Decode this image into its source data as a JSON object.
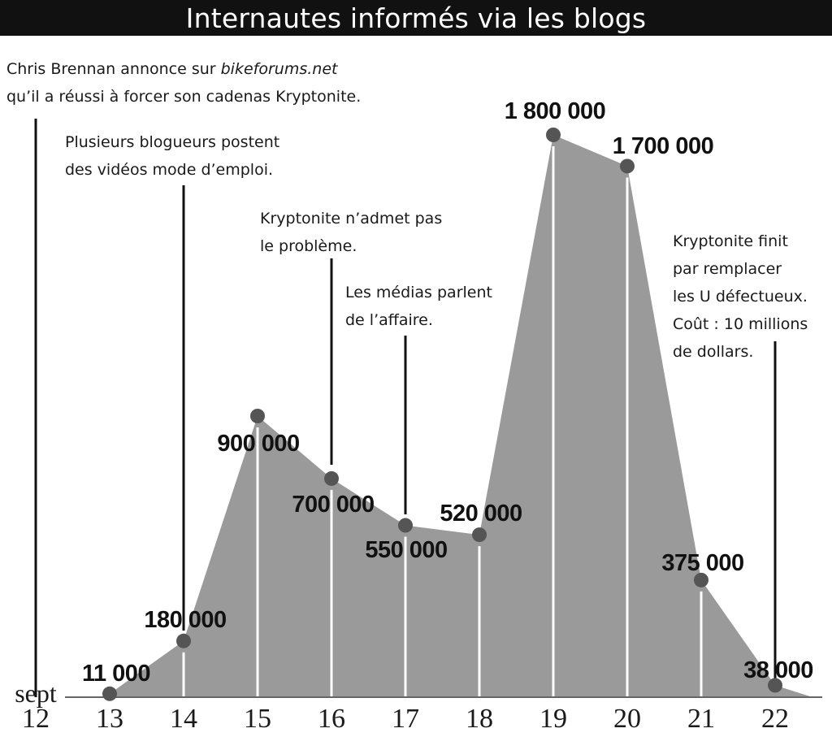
{
  "title": "Internautes informés via les blogs",
  "chart_data": {
    "type": "area",
    "title": "Internautes informés via les blogs",
    "x_prefix_label": "sept",
    "x": [
      12,
      13,
      14,
      15,
      16,
      17,
      18,
      19,
      20,
      21,
      22
    ],
    "points": [
      {
        "x": 13,
        "y": 11000,
        "label": "11 000"
      },
      {
        "x": 14,
        "y": 180000,
        "label": "180 000"
      },
      {
        "x": 15,
        "y": 900000,
        "label": "900 000"
      },
      {
        "x": 16,
        "y": 700000,
        "label": "700 000"
      },
      {
        "x": 17,
        "y": 550000,
        "label": "550 000"
      },
      {
        "x": 18,
        "y": 520000,
        "label": "520 000"
      },
      {
        "x": 19,
        "y": 1800000,
        "label": "1 800 000"
      },
      {
        "x": 20,
        "y": 1700000,
        "label": "1 700 000"
      },
      {
        "x": 21,
        "y": 375000,
        "label": "375 000"
      },
      {
        "x": 22,
        "y": 38000,
        "label": "38 000"
      }
    ],
    "ylim": [
      0,
      1800000
    ],
    "fill_color": "#9a9a9a",
    "marker_color": "#555555",
    "grid": false
  },
  "annotations": [
    {
      "id": "brennan",
      "day": 12,
      "lines": [
        "Chris Brennan annonce sur |bikeforums.net",
        "qu’il a réussi à forcer son cadenas Kryptonite."
      ]
    },
    {
      "id": "videos",
      "day": 14,
      "lines": [
        "Plusieurs blogueurs postent",
        "des vidéos mode d’emploi."
      ]
    },
    {
      "id": "nadmet",
      "day": 16,
      "lines": [
        "Kryptonite n’admet pas",
        "le problème."
      ]
    },
    {
      "id": "medias",
      "day": 17,
      "lines": [
        "Les médias parlent",
        "de l’affaire."
      ]
    },
    {
      "id": "remplace",
      "day": 22,
      "lines": [
        "Kryptonite finit",
        "par remplacer",
        "les U défectueux.",
        "Coût : 10 millions",
        "de dollars."
      ]
    }
  ]
}
